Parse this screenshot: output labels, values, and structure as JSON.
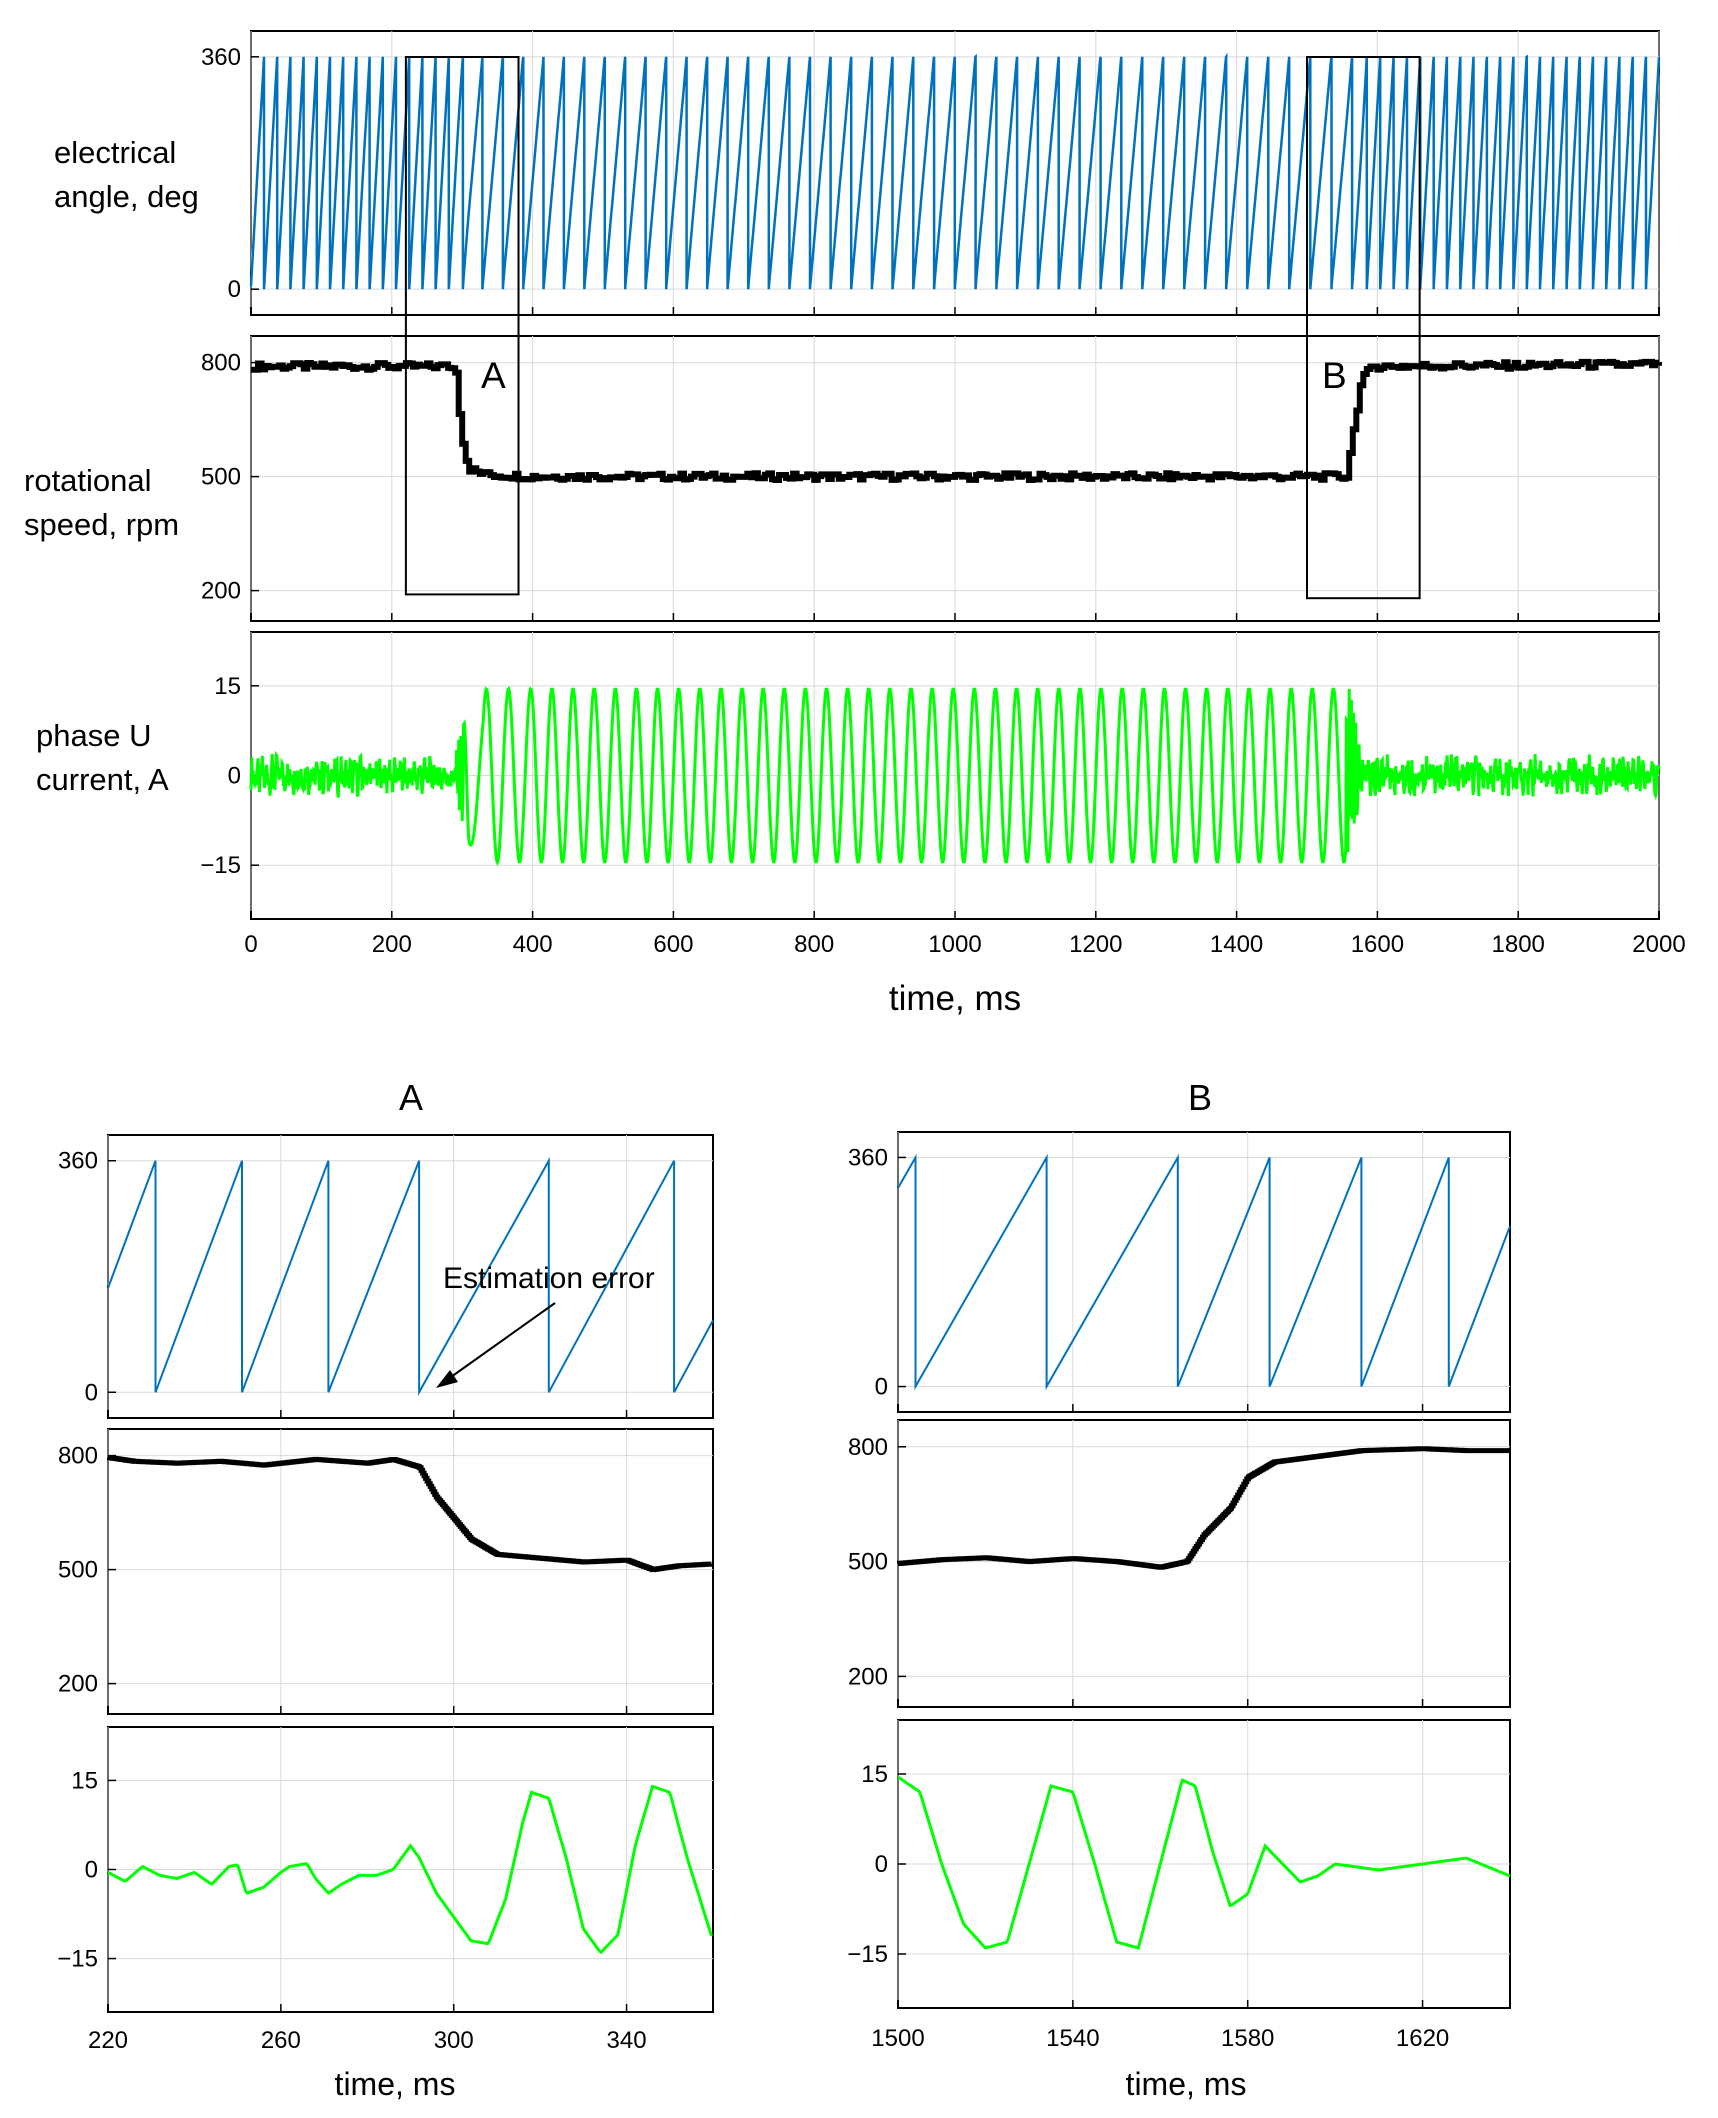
{
  "chart_data": [
    {
      "id": "main",
      "type": "line",
      "title": "",
      "xlabel": "time, ms",
      "xlim": [
        0,
        2000
      ],
      "xticks": [
        "0",
        "200",
        "400",
        "600",
        "800",
        "1000",
        "1200",
        "1400",
        "1600",
        "1800",
        "2000"
      ],
      "panels": [
        {
          "ylabel_lines": [
            "electrical",
            "angle, deg"
          ],
          "ylim": [
            -40,
            400
          ],
          "yticks": [
            "0",
            "360"
          ],
          "series": [
            {
              "name": "electrical angle",
              "color": "#0072bd",
              "kind": "sawtooth",
              "range": [
                0,
                360
              ],
              "speed_profile_rpm": [
                [
                  0,
                  800
                ],
                [
                  290,
                  800
                ],
                [
                  300,
                  650
                ],
                [
                  310,
                  520
                ],
                [
                  1555,
                  500
                ],
                [
                  1570,
                  650
                ],
                [
                  1580,
                  790
                ],
                [
                  2000,
                  800
                ]
              ]
            }
          ]
        },
        {
          "ylabel_lines": [
            "rotational",
            "speed, rpm"
          ],
          "ylim": [
            120,
            870
          ],
          "yticks": [
            "200",
            "500",
            "800"
          ],
          "series": [
            {
              "name": "rotational speed",
              "color": "#000000",
              "points": [
                [
                  0,
                  790
                ],
                [
                  280,
                  790
                ],
                [
                  290,
                  780
                ],
                [
                  296,
                  650
                ],
                [
                  302,
                  560
                ],
                [
                  310,
                  520
                ],
                [
                  330,
                  505
                ],
                [
                  400,
                  500
                ],
                [
                  1000,
                  500
                ],
                [
                  1555,
                  500
                ],
                [
                  1560,
                  560
                ],
                [
                  1568,
                  660
                ],
                [
                  1576,
                  750
                ],
                [
                  1590,
                  790
                ],
                [
                  2000,
                  795
                ]
              ]
            }
          ]
        },
        {
          "ylabel_lines": [
            "phase U",
            "current, A"
          ],
          "ylim": [
            -24,
            24
          ],
          "yticks": [
            "−15",
            "0",
            "15"
          ],
          "series": [
            {
              "name": "phase U current",
              "color": "#00ff00",
              "amplitude_A": [
                [
                  0,
                  2.5
                ],
                [
                  285,
                  2.5
                ],
                [
                  300,
                  8
                ],
                [
                  320,
                  14.5
                ],
                [
                  1560,
                  14.5
                ],
                [
                  1580,
                  2.5
                ],
                [
                  2000,
                  2.5
                ]
              ]
            }
          ]
        }
      ],
      "zoom_boxes": [
        {
          "label": "A",
          "x": [
            220,
            380
          ],
          "y_rpm": [
            190,
            860
          ]
        },
        {
          "label": "B",
          "x": [
            1500,
            1660
          ],
          "y_rpm": [
            180,
            860
          ]
        }
      ]
    },
    {
      "id": "A",
      "type": "line",
      "title": "A",
      "xlabel": "time, ms",
      "xlim": [
        220,
        360
      ],
      "xticks": [
        "220",
        "260",
        "300",
        "340"
      ],
      "annotation": "Estimation error",
      "panels": [
        {
          "ylim": [
            -40,
            400
          ],
          "yticks": [
            "0",
            "360"
          ],
          "series": [
            {
              "name": "electrical angle",
              "color": "#0072bd",
              "wrap_ms": [
                231,
                251,
                271,
                292,
                322,
                351
              ]
            }
          ]
        },
        {
          "ylim": [
            120,
            870
          ],
          "yticks": [
            "200",
            "500",
            "800"
          ],
          "series": [
            {
              "name": "rotational speed",
              "color": "#000000",
              "points": [
                [
                  220,
                  795
                ],
                [
                  226,
                  785
                ],
                [
                  236,
                  780
                ],
                [
                  246,
                  785
                ],
                [
                  256,
                  775
                ],
                [
                  268,
                  790
                ],
                [
                  280,
                  780
                ],
                [
                  286,
                  790
                ],
                [
                  292,
                  770
                ],
                [
                  296,
                  690
                ],
                [
                  304,
                  580
                ],
                [
                  310,
                  540
                ],
                [
                  320,
                  530
                ],
                [
                  330,
                  520
                ],
                [
                  340,
                  525
                ],
                [
                  346,
                  500
                ],
                [
                  352,
                  510
                ],
                [
                  360,
                  515
                ]
              ]
            }
          ]
        },
        {
          "ylim": [
            -24,
            24
          ],
          "yticks": [
            "−15",
            "0",
            "15"
          ],
          "series": [
            {
              "name": "phase U current",
              "color": "#00ff00",
              "points": [
                [
                  220,
                  -0.5
                ],
                [
                  224,
                  -2
                ],
                [
                  228,
                  0.5
                ],
                [
                  232,
                  -1
                ],
                [
                  236,
                  -1.5
                ],
                [
                  240,
                  -0.5
                ],
                [
                  244,
                  -2.5
                ],
                [
                  248,
                  0.5
                ],
                [
                  250,
                  0.8
                ],
                [
                  252,
                  -4
                ],
                [
                  256,
                  -3
                ],
                [
                  260,
                  -0.5
                ],
                [
                  262,
                  0.5
                ],
                [
                  266,
                  1
                ],
                [
                  268,
                  -1.5
                ],
                [
                  271,
                  -4
                ],
                [
                  274,
                  -2.5
                ],
                [
                  278,
                  -1
                ],
                [
                  282,
                  -1
                ],
                [
                  286,
                  0
                ],
                [
                  290,
                  4
                ],
                [
                  292,
                  2
                ],
                [
                  296,
                  -4
                ],
                [
                  300,
                  -8
                ],
                [
                  304,
                  -12
                ],
                [
                  308,
                  -12.5
                ],
                [
                  312,
                  -5
                ],
                [
                  316,
                  8
                ],
                [
                  318,
                  13
                ],
                [
                  322,
                  12
                ],
                [
                  326,
                  2
                ],
                [
                  330,
                  -10
                ],
                [
                  334,
                  -14
                ],
                [
                  338,
                  -11
                ],
                [
                  342,
                  4
                ],
                [
                  346,
                  14
                ],
                [
                  350,
                  13
                ],
                [
                  354,
                  2
                ],
                [
                  360,
                  -12
                ]
              ]
            }
          ]
        }
      ]
    },
    {
      "id": "B",
      "type": "line",
      "title": "B",
      "xlabel": "time, ms",
      "xlim": [
        1500,
        1640
      ],
      "xticks": [
        "1500",
        "1540",
        "1580",
        "1620"
      ],
      "panels": [
        {
          "ylim": [
            -40,
            400
          ],
          "yticks": [
            "0",
            "360"
          ],
          "series": [
            {
              "name": "electrical angle",
              "color": "#0072bd",
              "wrap_ms": [
                1504,
                1534,
                1564,
                1585,
                1606,
                1626
              ]
            }
          ]
        },
        {
          "ylim": [
            120,
            870
          ],
          "yticks": [
            "200",
            "500",
            "800"
          ],
          "series": [
            {
              "name": "rotational speed",
              "color": "#000000",
              "points": [
                [
                  1500,
                  495
                ],
                [
                  1510,
                  505
                ],
                [
                  1520,
                  510
                ],
                [
                  1530,
                  500
                ],
                [
                  1540,
                  508
                ],
                [
                  1550,
                  500
                ],
                [
                  1560,
                  485
                ],
                [
                  1566,
                  500
                ],
                [
                  1570,
                  570
                ],
                [
                  1576,
                  640
                ],
                [
                  1580,
                  720
                ],
                [
                  1586,
                  760
                ],
                [
                  1596,
                  775
                ],
                [
                  1606,
                  790
                ],
                [
                  1620,
                  795
                ],
                [
                  1630,
                  790
                ],
                [
                  1640,
                  790
                ]
              ]
            }
          ]
        },
        {
          "ylim": [
            -24,
            24
          ],
          "yticks": [
            "−15",
            "0",
            "15"
          ],
          "series": [
            {
              "name": "phase U current",
              "color": "#00ff00",
              "points": [
                [
                  1500,
                  14.5
                ],
                [
                  1505,
                  12
                ],
                [
                  1510,
                  0
                ],
                [
                  1515,
                  -10
                ],
                [
                  1520,
                  -14
                ],
                [
                  1525,
                  -13
                ],
                [
                  1530,
                  0
                ],
                [
                  1535,
                  13
                ],
                [
                  1540,
                  12
                ],
                [
                  1545,
                  0
                ],
                [
                  1550,
                  -13
                ],
                [
                  1555,
                  -14
                ],
                [
                  1560,
                  0
                ],
                [
                  1565,
                  14
                ],
                [
                  1568,
                  13
                ],
                [
                  1572,
                  2
                ],
                [
                  1576,
                  -7
                ],
                [
                  1580,
                  -5
                ],
                [
                  1584,
                  3
                ],
                [
                  1588,
                  0
                ],
                [
                  1592,
                  -3
                ],
                [
                  1596,
                  -2
                ],
                [
                  1600,
                  0
                ],
                [
                  1610,
                  -1
                ],
                [
                  1620,
                  0
                ],
                [
                  1630,
                  1
                ],
                [
                  1640,
                  -2
                ]
              ]
            }
          ]
        }
      ]
    }
  ]
}
